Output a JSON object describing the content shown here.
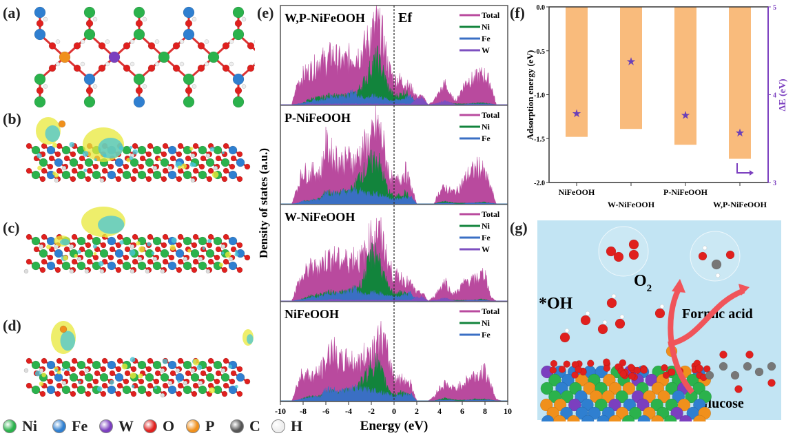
{
  "panel_labels": {
    "a": "(a)",
    "b": "(b)",
    "c": "(c)",
    "d": "(d)",
    "e": "(e)",
    "f": "(f)",
    "g": "(g)"
  },
  "atom_legend": [
    {
      "label": "Ni",
      "color": "#2bb24c"
    },
    {
      "label": "Fe",
      "color": "#2f7fd0"
    },
    {
      "label": "W",
      "color": "#7b3fbf"
    },
    {
      "label": "O",
      "color": "#e0201e"
    },
    {
      "label": "P",
      "color": "#f0901c"
    },
    {
      "label": "C",
      "color": "#555555"
    },
    {
      "label": "H",
      "color": "#eeeeee"
    }
  ],
  "colors": {
    "total": "#b94a9e",
    "ni": "#12843c",
    "fe": "#3a6fc4",
    "w": "#7d4fc0",
    "bar": "#f9bb7c",
    "star": "#6a3fb8",
    "right_axis": "#7b3fbf",
    "scene_bg": "#bfe3f3",
    "arrow": "#f0545a",
    "charge_yellow": "#e8e83a",
    "charge_cyan": "#48c6d6"
  },
  "chart_data": [
    {
      "type": "area",
      "panel": "e",
      "xlabel": "Energy (eV)",
      "ylabel": "Density of states (a.u.)",
      "xlim": [
        -10,
        10
      ],
      "xticks": [
        "-10",
        "-8",
        "-6",
        "-4",
        "-2",
        "0",
        "2",
        "4",
        "6",
        "8",
        "10"
      ],
      "fermi_label": "Ef",
      "fermi_energy": 0,
      "x": [
        -10,
        -9.5,
        -9,
        -8.5,
        -8,
        -7.5,
        -7,
        -6.5,
        -6,
        -5.5,
        -5,
        -4.5,
        -4,
        -3.5,
        -3,
        -2.5,
        -2,
        -1.5,
        -1,
        -0.5,
        0,
        0.5,
        1,
        1.5,
        2,
        2.5,
        3,
        3.5,
        4,
        4.5,
        5,
        5.5,
        6,
        6.5,
        7,
        7.5,
        8,
        8.5,
        9,
        9.5,
        10
      ],
      "subplots": [
        {
          "title": "W,P-NiFeOOH",
          "legend": [
            "Total",
            "Ni",
            "Fe",
            "W"
          ],
          "series": {
            "Total": [
              0,
              0,
              0,
              0.25,
              0.35,
              0.4,
              0.45,
              0.55,
              0.5,
              0.6,
              0.55,
              0.5,
              0.55,
              0.6,
              0.6,
              0.7,
              0.85,
              0.95,
              0.8,
              0.45,
              0.3,
              0.3,
              0.25,
              0.2,
              0.1,
              0.1,
              0,
              0.05,
              0.15,
              0.25,
              0.1,
              0.05,
              0.2,
              0.3,
              0.3,
              0.35,
              0.35,
              0.25,
              0,
              0,
              0
            ],
            "Ni": [
              0,
              0,
              0,
              0,
              0.02,
              0.06,
              0.08,
              0.08,
              0.1,
              0.12,
              0.1,
              0.1,
              0.12,
              0.12,
              0.2,
              0.3,
              0.45,
              0.55,
              0.4,
              0.2,
              0.1,
              0.12,
              0.15,
              0.1,
              0,
              0,
              0,
              0,
              0.02,
              0.03,
              0.02,
              0.01,
              0.01,
              0.01,
              0.02,
              0.02,
              0.02,
              0.01,
              0,
              0,
              0
            ],
            "Fe": [
              0,
              0,
              0,
              0.01,
              0.02,
              0.04,
              0.05,
              0.05,
              0.08,
              0.1,
              0.09,
              0.1,
              0.12,
              0.15,
              0.1,
              0.08,
              0.1,
              0.1,
              0.08,
              0.06,
              0.05,
              0.06,
              0.08,
              0.1,
              0.02,
              0.02,
              0,
              0,
              0.01,
              0.01,
              0.01,
              0,
              0,
              0.01,
              0.01,
              0.01,
              0.01,
              0.01,
              0,
              0,
              0
            ],
            "W": [
              0,
              0,
              0,
              0,
              0,
              0.01,
              0.01,
              0.01,
              0.01,
              0.01,
              0.01,
              0.01,
              0.01,
              0.01,
              0.01,
              0.01,
              0.01,
              0.01,
              0.01,
              0.01,
              0.01,
              0.01,
              0.01,
              0.01,
              0.08,
              0.08,
              0,
              0.01,
              0.03,
              0.05,
              0.02,
              0,
              0,
              0,
              0,
              0,
              0,
              0,
              0,
              0,
              0
            ]
          }
        },
        {
          "title": "P-NiFeOOH",
          "legend": [
            "Total",
            "Ni",
            "Fe"
          ],
          "series": {
            "Total": [
              0,
              0,
              0,
              0.2,
              0.4,
              0.35,
              0.4,
              0.35,
              0.7,
              0.6,
              0.55,
              0.5,
              0.55,
              0.5,
              0.6,
              0.7,
              0.75,
              0.95,
              0.75,
              0.4,
              0.25,
              0.3,
              0.4,
              0.2,
              0,
              0,
              0,
              0,
              0.15,
              0.2,
              0.15,
              0.15,
              0.25,
              0.35,
              0.4,
              0.45,
              0.35,
              0.2,
              0,
              0,
              0
            ],
            "Ni": [
              0,
              0,
              0,
              0,
              0.03,
              0.04,
              0.05,
              0.06,
              0.15,
              0.13,
              0.12,
              0.14,
              0.15,
              0.2,
              0.35,
              0.4,
              0.5,
              0.55,
              0.35,
              0.15,
              0.08,
              0.1,
              0.14,
              0.05,
              0,
              0,
              0,
              0,
              0.02,
              0.03,
              0.02,
              0.01,
              0.01,
              0.01,
              0.01,
              0.02,
              0.02,
              0.01,
              0,
              0,
              0
            ],
            "Fe": [
              0,
              0,
              0,
              0.01,
              0.03,
              0.04,
              0.05,
              0.05,
              0.15,
              0.13,
              0.12,
              0.14,
              0.14,
              0.16,
              0.15,
              0.13,
              0.13,
              0.12,
              0.1,
              0.08,
              0.06,
              0.06,
              0.08,
              0.08,
              0,
              0,
              0,
              0,
              0.01,
              0.01,
              0.01,
              0,
              0,
              0.01,
              0.01,
              0.01,
              0.01,
              0.01,
              0,
              0,
              0
            ]
          }
        },
        {
          "title": "W-NiFeOOH",
          "legend": [
            "Total",
            "Ni",
            "Fe",
            "W"
          ],
          "series": {
            "Total": [
              0,
              0,
              0,
              0.2,
              0.3,
              0.4,
              0.4,
              0.45,
              0.5,
              0.55,
              0.5,
              0.5,
              0.5,
              0.55,
              0.5,
              0.6,
              0.8,
              0.85,
              0.75,
              0.45,
              0.3,
              0.3,
              0.25,
              0.2,
              0.1,
              0.1,
              0,
              0.05,
              0.15,
              0.25,
              0.1,
              0.1,
              0.2,
              0.25,
              0.25,
              0.3,
              0.35,
              0.05,
              0,
              0,
              0
            ],
            "Ni": [
              0,
              0,
              0,
              0,
              0.03,
              0.06,
              0.07,
              0.08,
              0.1,
              0.11,
              0.1,
              0.11,
              0.12,
              0.15,
              0.2,
              0.35,
              0.55,
              0.6,
              0.35,
              0.15,
              0.1,
              0.1,
              0.1,
              0.06,
              0,
              0,
              0,
              0,
              0.01,
              0.03,
              0.01,
              0.01,
              0.01,
              0.01,
              0.01,
              0.02,
              0.02,
              0,
              0,
              0,
              0
            ],
            "Fe": [
              0,
              0,
              0,
              0.01,
              0.02,
              0.04,
              0.05,
              0.05,
              0.08,
              0.1,
              0.09,
              0.1,
              0.12,
              0.15,
              0.1,
              0.08,
              0.1,
              0.1,
              0.08,
              0.06,
              0.05,
              0.06,
              0.08,
              0.1,
              0,
              0,
              0,
              0,
              0.01,
              0.01,
              0.01,
              0,
              0,
              0.01,
              0.01,
              0.01,
              0.01,
              0,
              0,
              0,
              0
            ],
            "W": [
              0,
              0,
              0,
              0,
              0,
              0.01,
              0.01,
              0.01,
              0.01,
              0.02,
              0.02,
              0.01,
              0.01,
              0.01,
              0.01,
              0.01,
              0.01,
              0.01,
              0.01,
              0.01,
              0.01,
              0.01,
              0.01,
              0.01,
              0.05,
              0.05,
              0,
              0.01,
              0.02,
              0.04,
              0.01,
              0,
              0,
              0,
              0,
              0,
              0,
              0,
              0,
              0,
              0
            ]
          }
        },
        {
          "title": "NiFeOOH",
          "legend": [
            "Total",
            "Ni",
            "Fe"
          ],
          "series": {
            "Total": [
              0,
              0,
              0,
              0.2,
              0.35,
              0.3,
              0.3,
              0.35,
              0.45,
              0.65,
              0.5,
              0.45,
              0.5,
              0.45,
              0.45,
              0.55,
              0.6,
              0.7,
              0.75,
              0.5,
              0.3,
              0.25,
              0.25,
              0.2,
              0,
              0,
              0,
              0.05,
              0.15,
              0.2,
              0.15,
              0.15,
              0.2,
              0.25,
              0.3,
              0.3,
              0.35,
              0.2,
              0.02,
              0,
              0
            ],
            "Ni": [
              0,
              0,
              0,
              0,
              0.03,
              0.05,
              0.05,
              0.06,
              0.1,
              0.11,
              0.1,
              0.11,
              0.12,
              0.15,
              0.2,
              0.3,
              0.4,
              0.45,
              0.3,
              0.15,
              0.08,
              0.1,
              0.1,
              0.05,
              0,
              0,
              0,
              0,
              0.02,
              0.03,
              0.02,
              0.01,
              0.01,
              0.01,
              0.02,
              0.02,
              0.02,
              0.01,
              0,
              0,
              0
            ],
            "Fe": [
              0,
              0,
              0,
              0.01,
              0.03,
              0.04,
              0.05,
              0.05,
              0.15,
              0.13,
              0.12,
              0.13,
              0.13,
              0.15,
              0.14,
              0.13,
              0.13,
              0.12,
              0.1,
              0.08,
              0.06,
              0.06,
              0.08,
              0.08,
              0,
              0,
              0,
              0,
              0.01,
              0.01,
              0.01,
              0,
              0,
              0.01,
              0.01,
              0.01,
              0.01,
              0.01,
              0,
              0,
              0
            ]
          }
        }
      ]
    },
    {
      "type": "bar",
      "panel": "f",
      "categories": [
        "NiFeOOH",
        "W-NiFeOOH",
        "P-NiFeOOH",
        "W,P-NiFeOOH"
      ],
      "values": [
        -1.48,
        -1.39,
        -1.57,
        -1.73
      ],
      "ylabel": "Adsorption energy (eV)",
      "ylim": [
        -2.0,
        0.0
      ],
      "yticks": [
        "0.0",
        "-0.5",
        "-1.0",
        "-1.5",
        "-2.0"
      ],
      "secondary": {
        "type": "scatter",
        "marker": "star",
        "ylabel": "ΔE (eV)",
        "ylim": [
          3,
          5
        ],
        "yticks": [
          "5",
          "4",
          "3"
        ],
        "values": [
          3.79,
          4.38,
          3.77,
          3.57
        ]
      }
    }
  ],
  "scene": {
    "oh_label": "*OH",
    "o2_label": "O",
    "o2_sub": "2",
    "formic_label": "Formic acid",
    "glucose_label": "Glucose"
  }
}
